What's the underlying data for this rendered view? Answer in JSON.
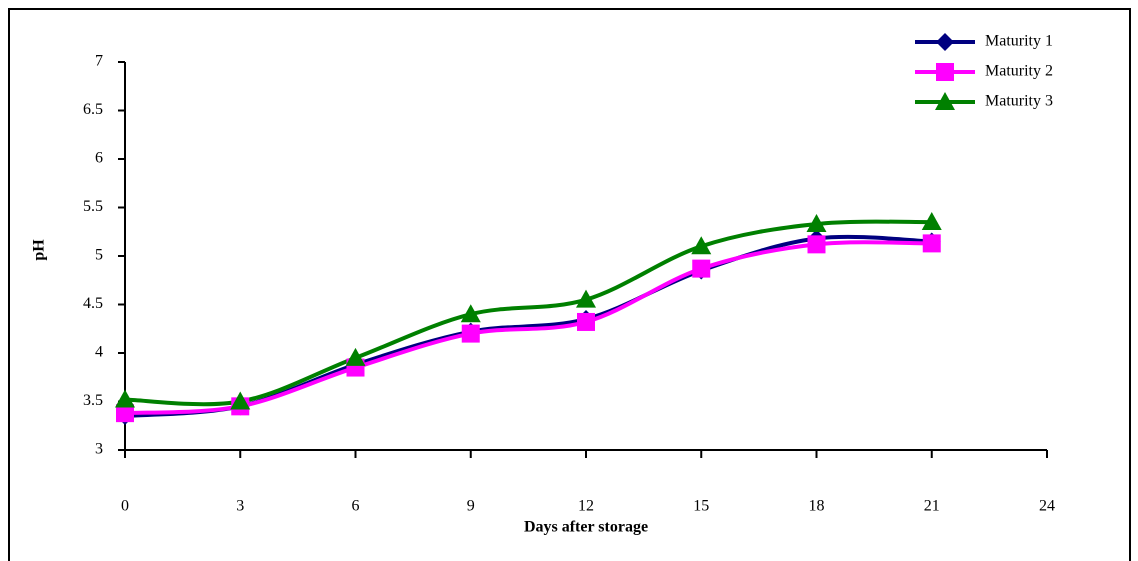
{
  "chart_data": {
    "type": "line",
    "x_label": "Days after storage",
    "y_label": "pH",
    "x": [
      0,
      3,
      6,
      9,
      12,
      15,
      18,
      21
    ],
    "series": [
      {
        "name": "Maturity 1",
        "color": "#000080",
        "marker": "diamond",
        "values": [
          3.35,
          3.45,
          3.88,
          4.22,
          4.35,
          4.85,
          5.18,
          5.15
        ]
      },
      {
        "name": "Maturity 2",
        "color": "#ff00ff",
        "marker": "square",
        "values": [
          3.38,
          3.45,
          3.85,
          4.2,
          4.32,
          4.87,
          5.12,
          5.13
        ]
      },
      {
        "name": "Maturity 3",
        "color": "#008000",
        "marker": "triangle",
        "values": [
          3.52,
          3.5,
          3.95,
          4.4,
          4.55,
          5.1,
          5.33,
          5.35
        ]
      }
    ],
    "xlim": [
      0,
      24
    ],
    "xticks": [
      0,
      3,
      6,
      9,
      12,
      15,
      18,
      21,
      24
    ],
    "ylim": [
      3,
      7
    ],
    "yticks": [
      3,
      3.5,
      4,
      4.5,
      5,
      5.5,
      6,
      6.5,
      7
    ],
    "legend": "top-right",
    "smooth": true
  }
}
